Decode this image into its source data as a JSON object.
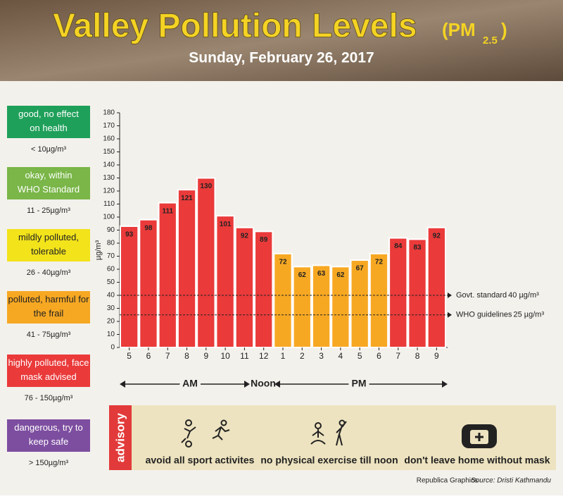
{
  "header": {
    "title": "Valley Pollution Levels",
    "unit_open": "(PM",
    "unit_sub": "2.5",
    "unit_close": ")",
    "date": "Sunday, February 26, 2017"
  },
  "levels": [
    {
      "label": "good, no effect on health",
      "range": "< 10µg/m³",
      "color": "#1fa05a"
    },
    {
      "label": "okay, within WHO Standard",
      "range": "11 - 25µg/m³",
      "color": "#7ab648"
    },
    {
      "label": "mildly polluted, tolerable",
      "range": "26 - 40µg/m³",
      "color": "#f2e31b"
    },
    {
      "label": "polluted, harmful for the frail",
      "range": "41 - 75µg/m³",
      "color": "#f7a823"
    },
    {
      "label": "highly polluted, face mask advised",
      "range": "76 - 150µg/m³",
      "color": "#ea3a3a"
    },
    {
      "label": "dangerous, try to keep safe",
      "range": "> 150µg/m³",
      "color": "#7d4ea0"
    }
  ],
  "chart_data": {
    "type": "bar",
    "categories": [
      "5",
      "6",
      "7",
      "8",
      "9",
      "10",
      "11",
      "12",
      "1",
      "2",
      "3",
      "4",
      "5",
      "6",
      "7",
      "8",
      "9"
    ],
    "values": [
      93,
      98,
      111,
      121,
      130,
      101,
      92,
      89,
      72,
      62,
      63,
      62,
      67,
      72,
      84,
      83,
      92
    ],
    "colors": [
      "#ea3a3a",
      "#ea3a3a",
      "#ea3a3a",
      "#ea3a3a",
      "#ea3a3a",
      "#ea3a3a",
      "#ea3a3a",
      "#ea3a3a",
      "#f7a823",
      "#f7a823",
      "#f7a823",
      "#f7a823",
      "#f7a823",
      "#f7a823",
      "#ea3a3a",
      "#ea3a3a",
      "#ea3a3a"
    ],
    "ylim": [
      0,
      180
    ],
    "yticks": [
      0,
      10,
      20,
      30,
      40,
      50,
      60,
      70,
      80,
      90,
      100,
      110,
      120,
      130,
      140,
      150,
      160,
      170,
      180
    ],
    "y_label": "µg/m³",
    "periods": [
      "AM",
      "Noon",
      "PM"
    ],
    "reference_lines": [
      {
        "label": "Govt. standard",
        "value": 40,
        "value_label": "40 µg/m³"
      },
      {
        "label": "WHO guidelines",
        "value": 25,
        "value_label": "25 µg/m³"
      }
    ]
  },
  "advisory": {
    "title": "advisory",
    "items": [
      "avoid all sport activites",
      "no physical exercise till noon",
      "don't leave home without mask"
    ]
  },
  "footer": {
    "credit": "Republica Graphics",
    "source": "Source: Dristi Kathmandu"
  }
}
